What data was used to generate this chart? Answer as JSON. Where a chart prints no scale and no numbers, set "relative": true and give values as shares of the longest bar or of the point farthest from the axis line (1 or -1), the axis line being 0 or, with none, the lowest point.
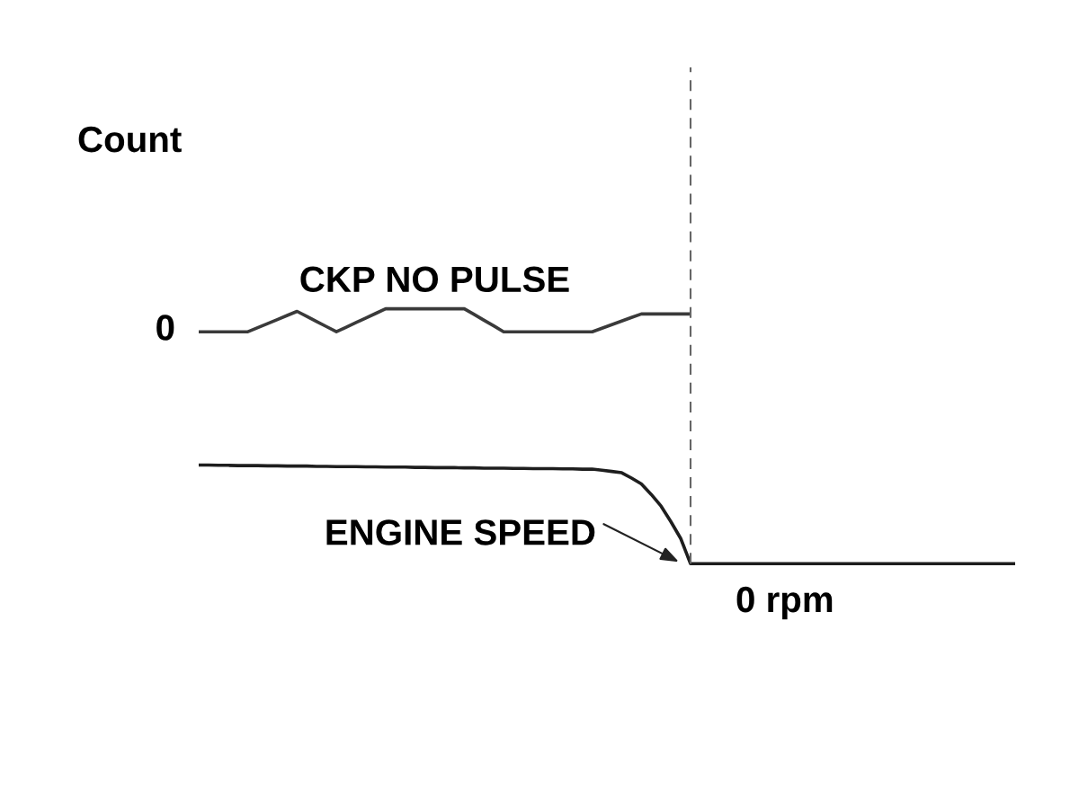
{
  "chart_data": {
    "type": "line",
    "relative": true,
    "ylabel": "Count",
    "categories": [
      null,
      null,
      null,
      null,
      null,
      null,
      null,
      null,
      null,
      null,
      null,
      null,
      null,
      null,
      null,
      null,
      null,
      null,
      null,
      null,
      null,
      null,
      null,
      null,
      null,
      null,
      null,
      null,
      null,
      null,
      null,
      null,
      null,
      null,
      null,
      null,
      null,
      null,
      null,
      null,
      null,
      null,
      null,
      null,
      null,
      null,
      null,
      null,
      null,
      null,
      null,
      null,
      null,
      null,
      null,
      null,
      null,
      null,
      null,
      null,
      null,
      null,
      null,
      null,
      null,
      null,
      null,
      null,
      null,
      null,
      null,
      null,
      null,
      null,
      null,
      null,
      null,
      null,
      null,
      null,
      null,
      null,
      null,
      null
    ],
    "series": [
      {
        "name": "CKP NO PULSE",
        "color": "#3a3a3a",
        "values": [
          0.91,
          0.91,
          0.91,
          0.91,
          0.91,
          0.91,
          0.926,
          0.942,
          0.958,
          0.974,
          0.99,
          0.97,
          0.95,
          0.93,
          0.91,
          0.928,
          0.946,
          0.964,
          0.982,
          1.0,
          1.0,
          1.0,
          1.0,
          1.0,
          1.0,
          1.0,
          1.0,
          1.0,
          0.978,
          0.955,
          0.933,
          0.91,
          0.91,
          0.91,
          0.91,
          0.91,
          0.91,
          0.91,
          0.91,
          0.91,
          0.91,
          0.924,
          0.938,
          0.952,
          0.966,
          0.98,
          0.98,
          0.98,
          0.98,
          0.98,
          0.98,
          null,
          null,
          null,
          null,
          null,
          null,
          null,
          null,
          null,
          null,
          null,
          null,
          null,
          null,
          null,
          null,
          null,
          null,
          null,
          null,
          null,
          null,
          null,
          null,
          null,
          null,
          null,
          null,
          null,
          null,
          null,
          null,
          null
        ]
      },
      {
        "name": "ENGINE SPEED",
        "color": "#1e1e1e",
        "values": [
          0.387,
          0.387,
          0.386,
          0.386,
          0.385,
          0.385,
          0.385,
          0.384,
          0.384,
          0.383,
          0.383,
          0.383,
          0.382,
          0.382,
          0.381,
          0.381,
          0.381,
          0.38,
          0.38,
          0.379,
          0.379,
          0.379,
          0.378,
          0.378,
          0.377,
          0.377,
          0.377,
          0.376,
          0.376,
          0.375,
          0.375,
          0.375,
          0.374,
          0.374,
          0.373,
          0.373,
          0.373,
          0.372,
          0.372,
          0.371,
          0.371,
          0.367,
          0.362,
          0.357,
          0.336,
          0.313,
          0.272,
          0.226,
          0.165,
          0.099,
          0.0,
          0,
          0,
          0,
          0,
          0,
          0,
          0,
          0,
          0,
          0,
          0,
          0,
          0,
          0,
          0,
          0,
          0,
          0,
          0,
          0,
          0,
          0,
          0,
          0,
          0,
          0,
          0,
          0,
          0,
          0,
          0,
          0,
          0
        ]
      }
    ],
    "annotations": [
      "0",
      "0 rpm"
    ]
  }
}
